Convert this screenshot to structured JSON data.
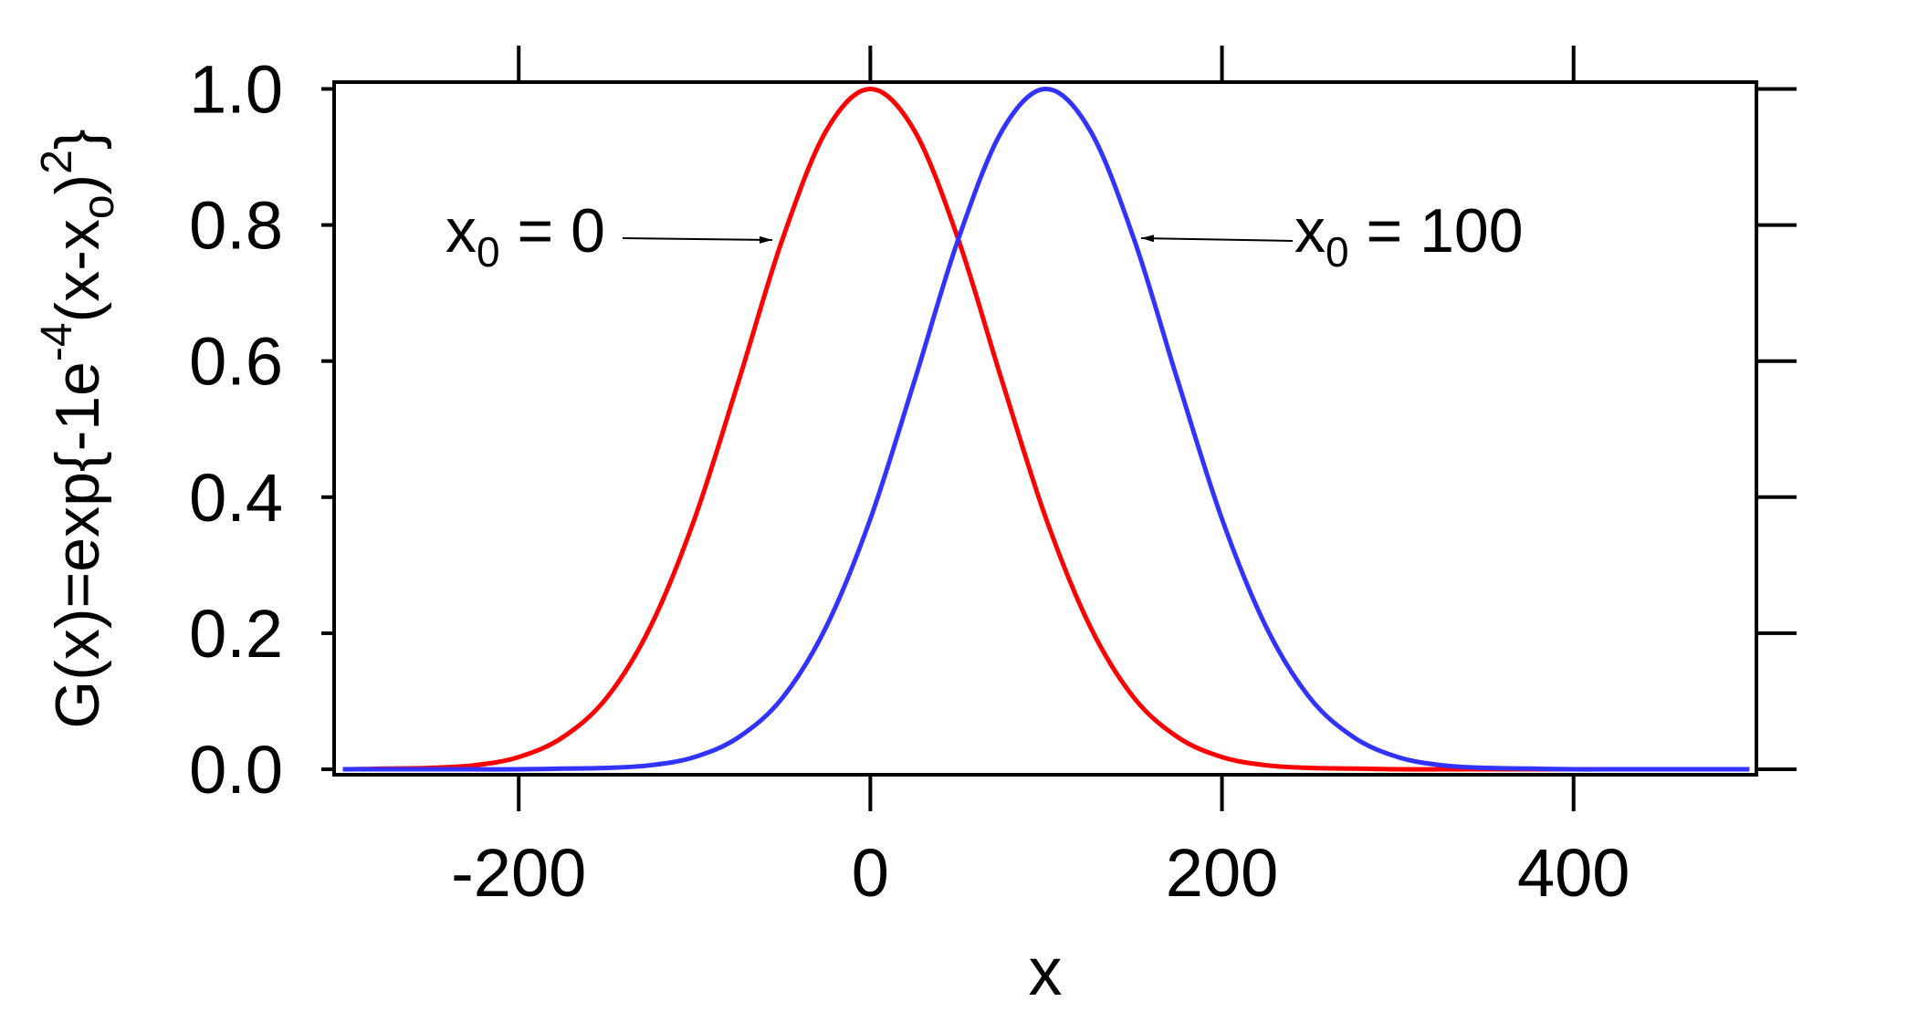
{
  "chart_data": {
    "type": "line",
    "x_label": "x",
    "y_label": [
      "G(x)=exp{-1e",
      "-4",
      "(x-x",
      "o",
      ")",
      "2",
      "}"
    ],
    "annotations": [
      [
        "x",
        "0",
        " = 0"
      ],
      [
        "x",
        "0",
        " = 100"
      ]
    ],
    "x": [
      -300,
      -275,
      -250,
      -225,
      -200,
      -175,
      -150,
      -125,
      -100,
      -75,
      -50,
      -25,
      0,
      25,
      50,
      75,
      100,
      125,
      150,
      175,
      200,
      225,
      250,
      275,
      300,
      325,
      350,
      375,
      400,
      425,
      450,
      475,
      500
    ],
    "series": [
      {
        "color": "#ff0000",
        "values": [
          0,
          0.001,
          0.002,
          0.006,
          0.018,
          0.047,
          0.105,
          0.21,
          0.368,
          0.57,
          0.779,
          0.939,
          1,
          0.939,
          0.779,
          0.57,
          0.368,
          0.21,
          0.105,
          0.047,
          0.018,
          0.006,
          0.002,
          0.001,
          0,
          0,
          0,
          0,
          0,
          0,
          0,
          0,
          0
        ]
      },
      {
        "color": "#3333ff",
        "values": [
          0,
          0,
          0,
          0,
          0,
          0.001,
          0.002,
          0.006,
          0.018,
          0.047,
          0.105,
          0.21,
          0.368,
          0.57,
          0.779,
          0.939,
          1,
          0.939,
          0.779,
          0.57,
          0.368,
          0.21,
          0.105,
          0.047,
          0.018,
          0.006,
          0.002,
          0.001,
          0,
          0,
          0,
          0,
          0
        ]
      }
    ],
    "xlim": [
      -305,
      504
    ],
    "ylim": [
      -0.008,
      1.01
    ],
    "xticks": [
      -200,
      0,
      200,
      400
    ],
    "yticks": [
      {
        "value": 0,
        "label": "0.0"
      },
      {
        "value": 0.2,
        "label": "0.2"
      },
      {
        "value": 0.4,
        "label": "0.4"
      },
      {
        "value": 0.6,
        "label": "0.6"
      },
      {
        "value": 0.8,
        "label": "0.8"
      },
      {
        "value": 1,
        "label": "1.0"
      }
    ]
  }
}
